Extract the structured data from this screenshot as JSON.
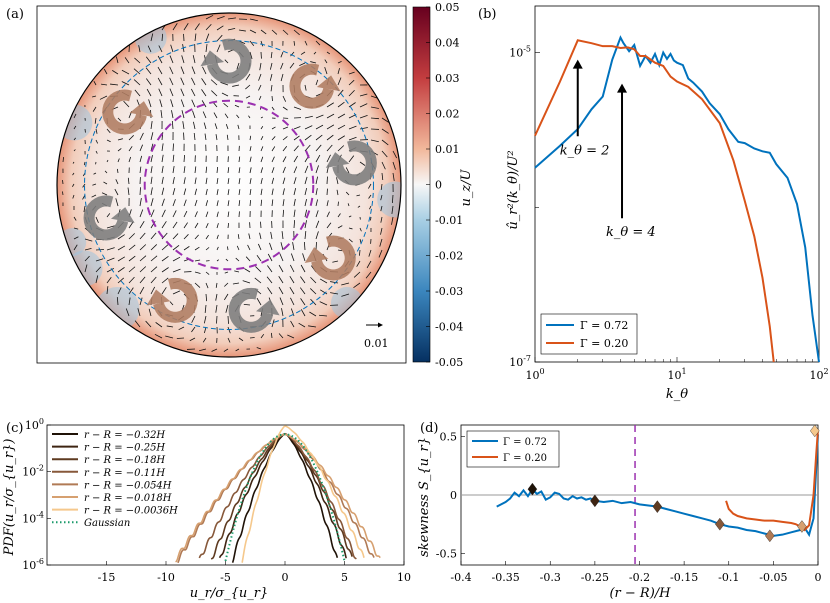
{
  "figure": {
    "panel_labels": [
      "(a)",
      "(b)",
      "(c)",
      "(d)"
    ],
    "colors": {
      "blue": "#0072bd",
      "orange": "#d95319",
      "purple": "#9b30b0",
      "warm_arrow": "#b07d62",
      "cool_arrow": "#7d7d7d",
      "gaussian": "#1a9a6a",
      "zero_line": "#999999"
    }
  },
  "chart_data": [
    {
      "panel": "(a)",
      "type": "heatmap",
      "description_label": "u_z/U",
      "colorbar": {
        "label": "u_z/U",
        "ticks": [
          "0.05",
          "0.04",
          "0.03",
          "0.02",
          "0.01",
          "0",
          "-0.01",
          "-0.02",
          "-0.03",
          "-0.04",
          "-0.05"
        ],
        "range": [
          -0.05,
          0.05
        ]
      },
      "scale_arrow_label": "0.01",
      "circles": {
        "inner_dashed_radius_fraction": 0.49,
        "outer_dashed_radius_fraction": 0.84
      },
      "vortices": [
        {
          "angle_deg": 90,
          "radius_fraction": 0.72,
          "tone": "cool",
          "turn": "cw"
        },
        {
          "angle_deg": 50,
          "radius_fraction": 0.75,
          "tone": "warm",
          "turn": "ccw"
        },
        {
          "angle_deg": 10,
          "radius_fraction": 0.74,
          "tone": "cool",
          "turn": "cw"
        },
        {
          "angle_deg": -35,
          "radius_fraction": 0.74,
          "tone": "warm",
          "turn": "cw"
        },
        {
          "angle_deg": -80,
          "radius_fraction": 0.74,
          "tone": "cool",
          "turn": "ccw"
        },
        {
          "angle_deg": -115,
          "radius_fraction": 0.74,
          "tone": "warm",
          "turn": "cw"
        },
        {
          "angle_deg": -165,
          "radius_fraction": 0.74,
          "tone": "cool",
          "turn": "ccw"
        },
        {
          "angle_deg": 145,
          "radius_fraction": 0.74,
          "tone": "warm",
          "turn": "ccw"
        }
      ]
    },
    {
      "panel": "(b)",
      "type": "line",
      "xlabel": "k_θ",
      "ylabel": "û_r²(k_θ)/U²",
      "xscale": "log",
      "yscale": "log",
      "xlim": [
        1,
        100
      ],
      "ylim": [
        1e-07,
        2e-05
      ],
      "xtick_labels": [
        "10^0",
        "10^1",
        "10^2"
      ],
      "ytick_labels": [
        "10^-7",
        "10^-5"
      ],
      "annotations": [
        {
          "text": "k_θ = 2",
          "x": 2,
          "y_text": 2.2e-06,
          "y_arrow_top": 9e-06
        },
        {
          "text": "k_θ = 4",
          "x": 4.1,
          "y_text": 6.5e-07,
          "y_arrow_top": 6.3e-06
        }
      ],
      "legend": {
        "placement": "bottom-left",
        "entries": [
          "Γ = 0.72",
          "Γ = 0.20"
        ]
      },
      "series": [
        {
          "name": "Γ = 0.72",
          "color": "#0072bd",
          "x": [
            1,
            1.5,
            2,
            2.5,
            3,
            3.5,
            4,
            4.2,
            4.6,
            5,
            5.5,
            6,
            6.5,
            7,
            7.5,
            8,
            8.5,
            9,
            9.5,
            10,
            11,
            12,
            13,
            15,
            17,
            20,
            23,
            27,
            30,
            35,
            40,
            45,
            50,
            60,
            70,
            80,
            90,
            100
          ],
          "y": [
            1.8e-06,
            2.5e-06,
            3.2e-06,
            4.3e-06,
            5.2e-06,
            9e-06,
            1.25e-05,
            1.15e-05,
            1.02e-05,
            1.12e-05,
            8.2e-06,
            9.5e-06,
            8.6e-06,
            9.8e-06,
            8.3e-06,
            1e-05,
            9.1e-06,
            9.8e-06,
            8.9e-06,
            8.6e-06,
            8.3e-06,
            6.8e-06,
            6.4e-06,
            5.6e-06,
            4.7e-06,
            4e-06,
            3.2e-06,
            2.65e-06,
            2.6e-06,
            2.4e-06,
            2.3e-06,
            2.25e-06,
            1.9e-06,
            1.55e-06,
            1.05e-06,
            5.5e-07,
            2e-07,
            1e-07
          ]
        },
        {
          "name": "Γ = 0.20",
          "color": "#d95319",
          "x": [
            1,
            1.5,
            2,
            2.5,
            3,
            3.5,
            4,
            4.5,
            5,
            5.5,
            6,
            7,
            8,
            9,
            10,
            12,
            15,
            20,
            25,
            30,
            35,
            40,
            45,
            48
          ],
          "y": [
            2.9e-06,
            6.5e-06,
            1.2e-05,
            1.15e-05,
            1.1e-05,
            1.1e-05,
            1.07e-05,
            1.08e-05,
            1.05e-05,
            9.5e-06,
            9.5e-06,
            8.6e-06,
            8.2e-06,
            7e-06,
            6.5e-06,
            6e-06,
            5e-06,
            3.5e-06,
            2e-06,
            1.1e-06,
            6.5e-07,
            3.5e-07,
            1.7e-07,
            1e-07
          ]
        }
      ]
    },
    {
      "panel": "(c)",
      "type": "line",
      "xlabel": "u_r/σ_{u_r}",
      "ylabel": "PDF(u_r/σ_{u_r})",
      "yscale": "log",
      "xlim": [
        -20,
        10
      ],
      "ylim": [
        1e-06,
        1
      ],
      "xticks": [
        -15,
        -10,
        -5,
        0,
        5,
        10
      ],
      "xtick_labels": [
        "-15",
        "-10",
        "-5",
        "0",
        "5",
        "10"
      ],
      "ytick_labels": [
        "10^0",
        "10^-2",
        "10^-4",
        "10^-6"
      ],
      "legend": {
        "placement": "top-left",
        "entries": [
          "r − R = −0.32H",
          "r − R = −0.25H",
          "r − R = −0.18H",
          "r − R = −0.11H",
          "r − R = −0.054H",
          "r − R = −0.018H",
          "r − R = −0.0036H",
          "Gaussian"
        ]
      },
      "series": [
        {
          "name": "r − R = −0.32H",
          "color": "#1f1207",
          "x_left": -4.4,
          "x_right": 4.4,
          "peak": 0.42
        },
        {
          "name": "r − R = −0.25H",
          "color": "#3e2412",
          "x_left": -5.5,
          "x_right": 5.2,
          "peak": 0.42
        },
        {
          "name": "r − R = −0.18H",
          "color": "#5e3a20",
          "x_left": -6.2,
          "x_right": 5.7,
          "peak": 0.42
        },
        {
          "name": "r − R = −0.11H",
          "color": "#87583a",
          "x_left": -7.2,
          "x_right": 6.0,
          "peak": 0.41
        },
        {
          "name": "r − R = −0.054H",
          "color": "#b07a55",
          "x_left": -9.0,
          "x_right": 7.5,
          "peak": 0.4
        },
        {
          "name": "r − R = −0.018H",
          "color": "#d6a070",
          "x_left": -9.2,
          "x_right": 8.0,
          "peak": 0.4
        },
        {
          "name": "r − R = −0.0036H",
          "color": "#f5c88c",
          "x_left": -3.6,
          "x_right": 6.7,
          "peak": 0.9
        },
        {
          "name": "Gaussian",
          "color": "#1a9a6a",
          "style": "dotted",
          "x_left": -5.0,
          "x_right": 5.0,
          "peak": 0.4
        }
      ]
    },
    {
      "panel": "(d)",
      "type": "line",
      "xlabel": "(r − R)/H",
      "ylabel": "skewness S_{u_r}",
      "xlim": [
        -0.4,
        0
      ],
      "ylim": [
        -0.6,
        0.6
      ],
      "xticks": [
        -0.4,
        -0.35,
        -0.3,
        -0.25,
        -0.2,
        -0.15,
        -0.1,
        -0.05,
        0
      ],
      "xtick_labels": [
        "-0.4",
        "-0.35",
        "-0.3",
        "-0.25",
        "-0.2",
        "-0.15",
        "-0.1",
        "-0.05",
        "0"
      ],
      "yticks": [
        -0.5,
        0,
        0.5
      ],
      "ytick_labels": [
        "-0.5",
        "0",
        "0.5"
      ],
      "vline_x": -0.205,
      "legend": {
        "placement": "top-left",
        "entries": [
          "Γ = 0.72",
          "Γ = 0.20"
        ]
      },
      "series": [
        {
          "name": "Γ = 0.72",
          "color": "#0072bd",
          "x": [
            -0.36,
            -0.35,
            -0.345,
            -0.34,
            -0.335,
            -0.33,
            -0.325,
            -0.32,
            -0.315,
            -0.31,
            -0.305,
            -0.3,
            -0.295,
            -0.29,
            -0.285,
            -0.28,
            -0.275,
            -0.27,
            -0.265,
            -0.26,
            -0.255,
            -0.25,
            -0.24,
            -0.23,
            -0.22,
            -0.21,
            -0.2,
            -0.19,
            -0.18,
            -0.17,
            -0.16,
            -0.15,
            -0.14,
            -0.13,
            -0.12,
            -0.11,
            -0.1,
            -0.09,
            -0.08,
            -0.07,
            -0.06,
            -0.055,
            -0.05,
            -0.04,
            -0.03,
            -0.02,
            -0.015,
            -0.01,
            -0.005,
            0
          ],
          "y": [
            -0.1,
            -0.06,
            -0.03,
            0.02,
            -0.01,
            0.04,
            -0.01,
            0.05,
            0.01,
            0.03,
            -0.04,
            -0.02,
            0.02,
            0.01,
            -0.03,
            -0.04,
            -0.01,
            -0.03,
            -0.02,
            -0.04,
            -0.03,
            -0.05,
            -0.06,
            -0.05,
            -0.07,
            -0.06,
            -0.08,
            -0.09,
            -0.1,
            -0.12,
            -0.14,
            -0.16,
            -0.18,
            -0.2,
            -0.22,
            -0.25,
            -0.27,
            -0.28,
            -0.3,
            -0.31,
            -0.33,
            -0.34,
            -0.35,
            -0.34,
            -0.32,
            -0.3,
            -0.28,
            -0.34,
            -0.2,
            0.52
          ]
        },
        {
          "name": "Γ = 0.20",
          "color": "#d95319",
          "x": [
            -0.103,
            -0.1,
            -0.095,
            -0.09,
            -0.08,
            -0.07,
            -0.06,
            -0.05,
            -0.04,
            -0.03,
            -0.025,
            -0.02,
            -0.015,
            -0.01,
            -0.005,
            -0.002,
            0
          ],
          "y": [
            -0.05,
            -0.12,
            -0.16,
            -0.18,
            -0.2,
            -0.21,
            -0.22,
            -0.22,
            -0.23,
            -0.24,
            -0.25,
            -0.27,
            -0.3,
            -0.26,
            0.0,
            0.35,
            0.56
          ]
        }
      ],
      "markers": [
        {
          "x": -0.32,
          "y": 0.05,
          "color": "#1f1207"
        },
        {
          "x": -0.25,
          "y": -0.05,
          "color": "#3e2412"
        },
        {
          "x": -0.18,
          "y": -0.1,
          "color": "#5e3a20"
        },
        {
          "x": -0.11,
          "y": -0.25,
          "color": "#87583a"
        },
        {
          "x": -0.054,
          "y": -0.35,
          "color": "#b07a55"
        },
        {
          "x": -0.018,
          "y": -0.27,
          "color": "#d6a070"
        },
        {
          "x": -0.0036,
          "y": 0.55,
          "color": "#f5c88c"
        }
      ]
    }
  ]
}
